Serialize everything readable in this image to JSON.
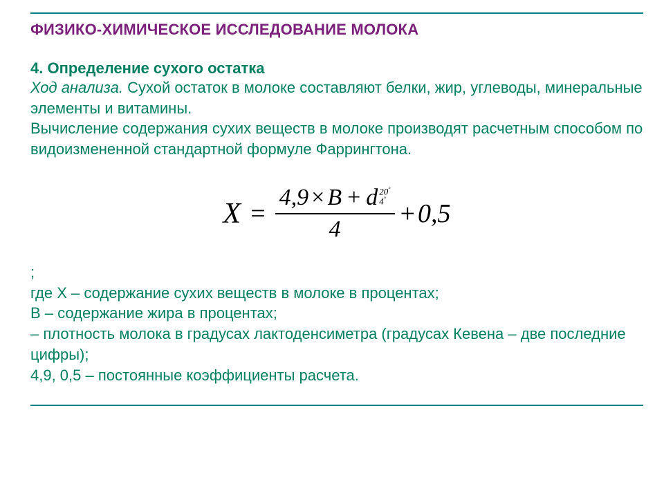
{
  "title": "ФИЗИКО-ХИМИЧЕСКОЕ ИССЛЕДОВАНИЕ МОЛОКА",
  "section": {
    "number_label": "4. Определение сухого остатка",
    "run_in_label": "Ход анализа.",
    "paragraph_rest": " Сухой остаток в молоке составляют белки, жир, углеводы, минеральные элементы и витамины.",
    "paragraph2": "Вычисление содержания сухих веществ в молоке производят расчетным способом по видоизмененной стандартной формуле Фаррингтона."
  },
  "formula": {
    "lhs": "X",
    "eq": "=",
    "num_coef": "4,9",
    "num_times": "×",
    "num_B": "B",
    "num_plus": "+",
    "num_d": "d",
    "d_sup": "20",
    "d_sub": "4",
    "deg": "°",
    "den": "4",
    "tail_plus": "+",
    "tail_val": "0,5"
  },
  "legend": {
    "semicolon": ";",
    "l1": "где  X – содержание сухих веществ в молоке в процентах;",
    "l2": "B – содержание жира в процентах;",
    "l3": "– плотность молока в градусах лактоденсиметра (градусах Кевена – две последние цифры);",
    "l4": "4,9, 0,5 – постоянные коэффициенты расчета."
  },
  "colors": {
    "title": "#7a1f7a",
    "text": "#008060",
    "rule": "#008080",
    "formula": "#000000",
    "background": "#ffffff"
  },
  "font_sizes": {
    "title": 22,
    "body": 22,
    "formula_main": 38
  }
}
